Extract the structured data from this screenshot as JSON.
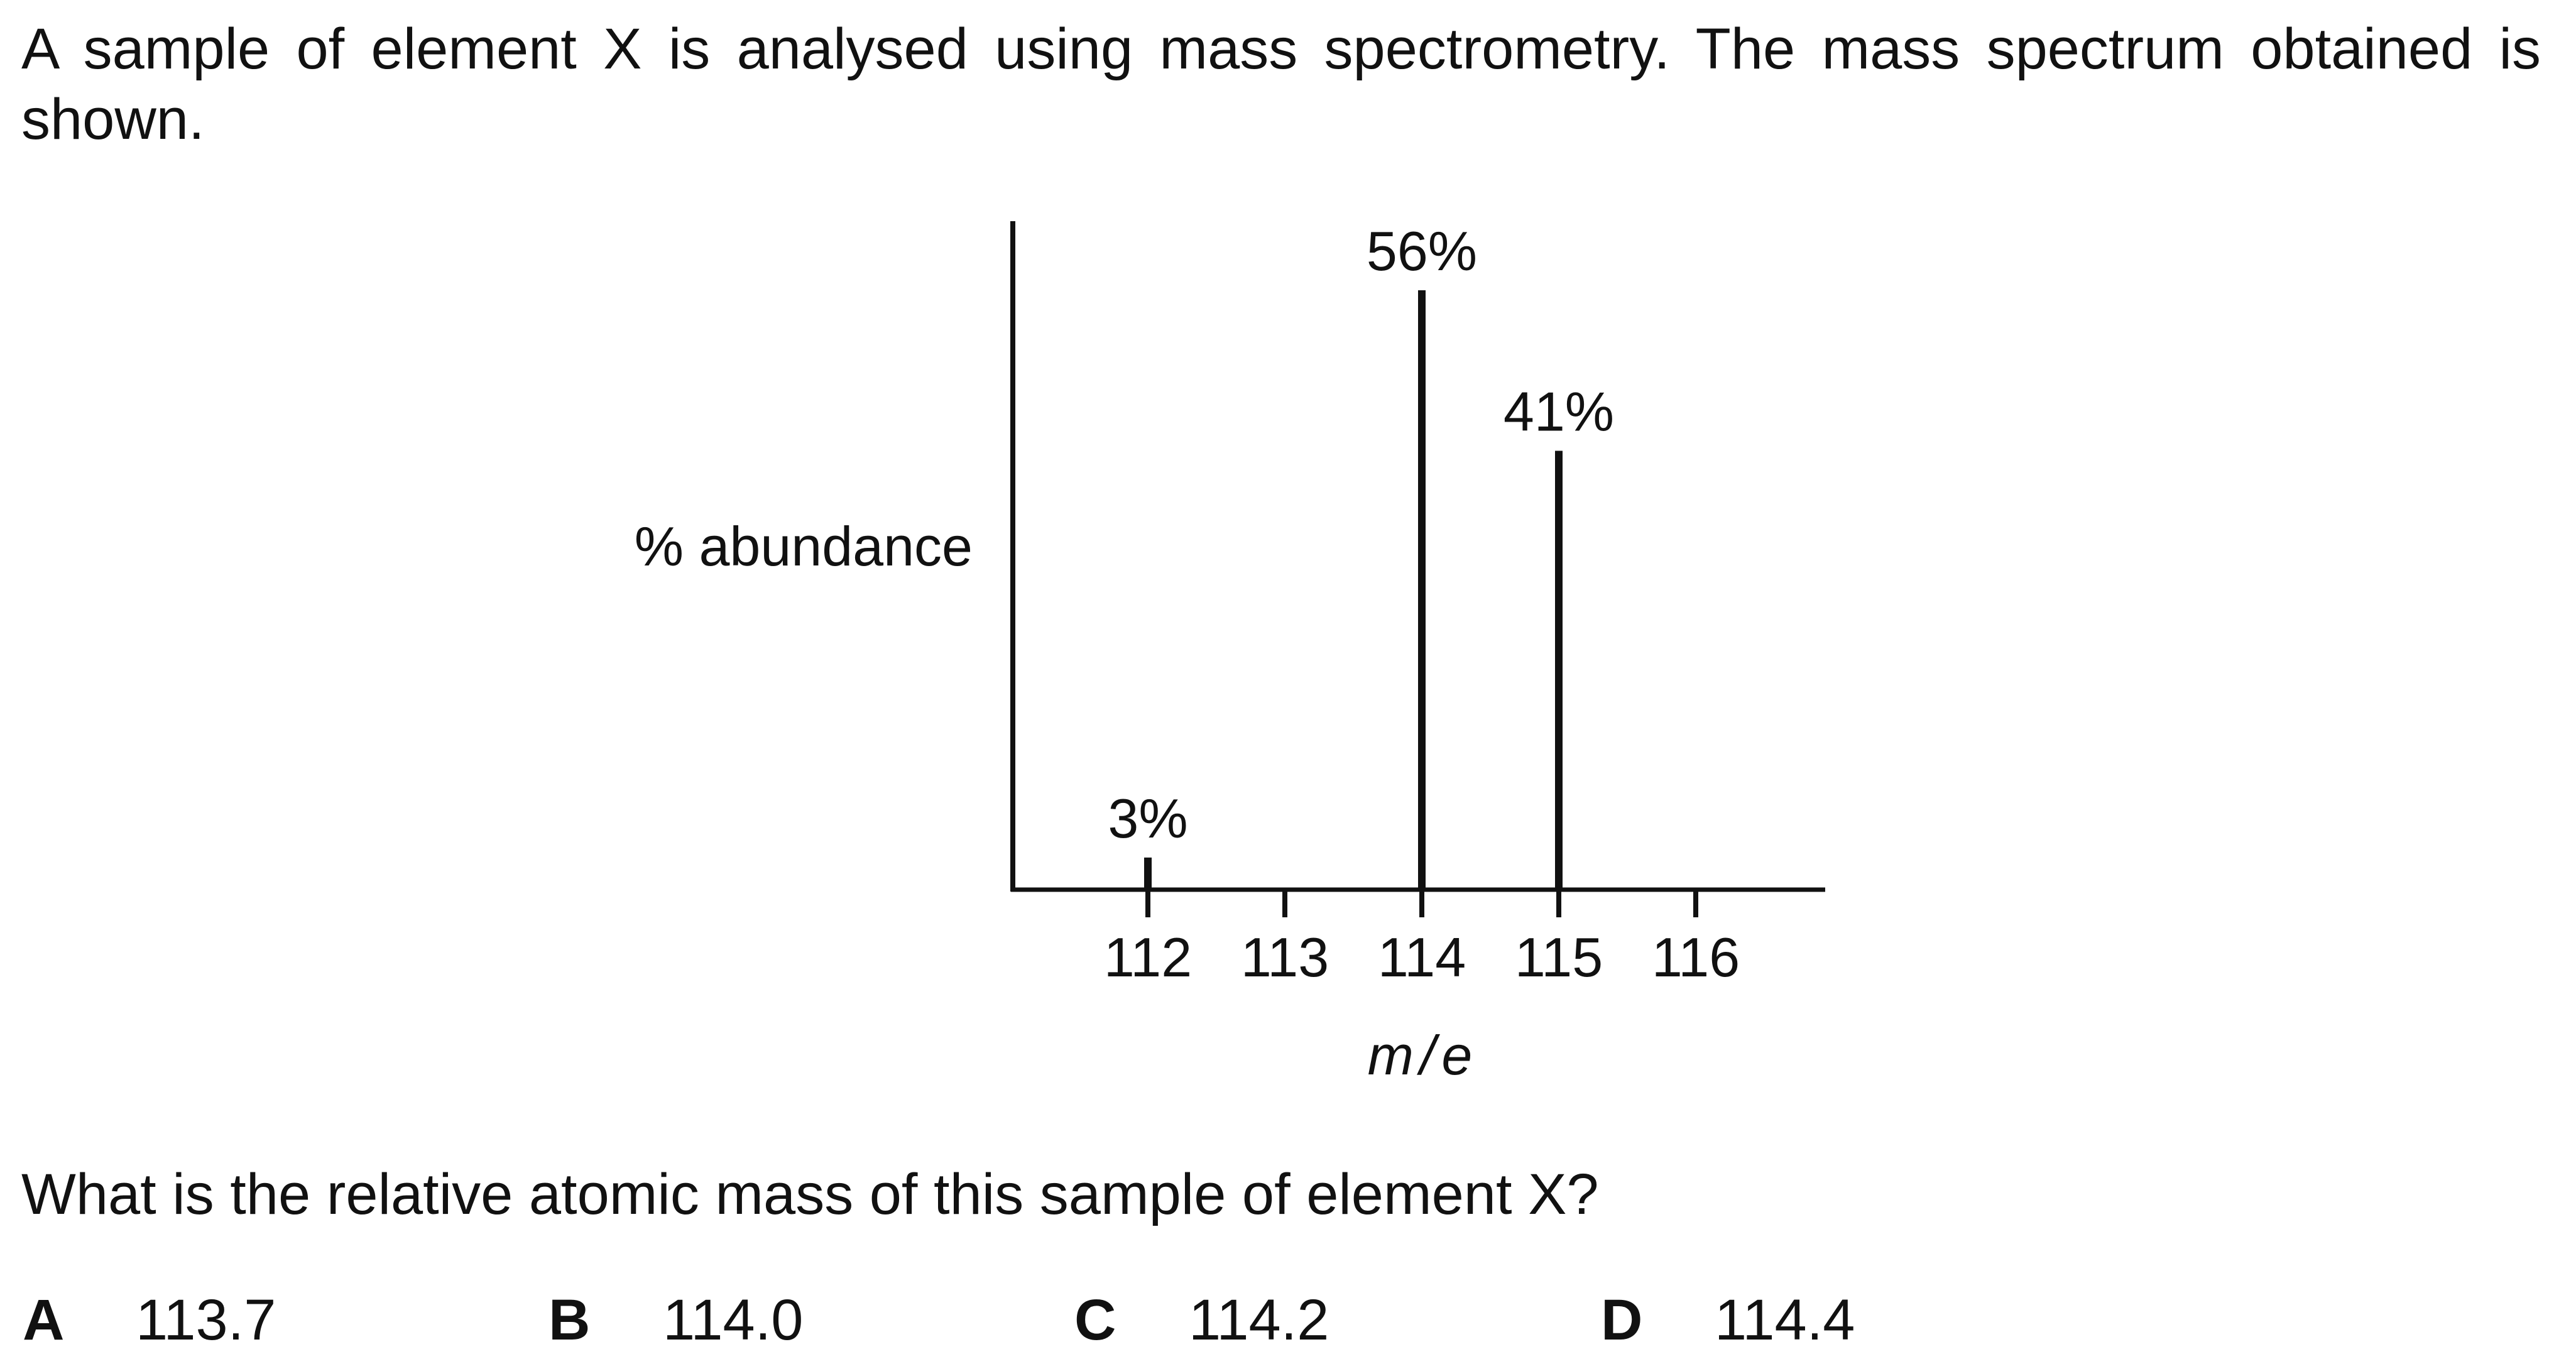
{
  "question": {
    "intro": "A sample of element X is analysed using mass spectrometry. The mass spectrum obtained is shown.",
    "prompt": "What is the relative atomic mass of this sample of element X?"
  },
  "options": [
    {
      "letter": "A",
      "value": "113.7"
    },
    {
      "letter": "B",
      "value": "114.0"
    },
    {
      "letter": "C",
      "value": "114.2"
    },
    {
      "letter": "D",
      "value": "114.4"
    }
  ],
  "chart_data": {
    "type": "bar",
    "ylabel": "% abundance",
    "xlabel": "m / e",
    "x_ticks": [
      112,
      113,
      114,
      115,
      116
    ],
    "x_tick_labels": [
      "112",
      "113",
      "114",
      "115",
      "116"
    ],
    "x": [
      112,
      114,
      115
    ],
    "values": [
      3,
      56,
      41
    ],
    "data_labels": [
      "3%",
      "56%",
      "41%"
    ],
    "xlim": [
      111,
      117
    ],
    "ylim": [
      0,
      56
    ],
    "grid": false,
    "legend": "none"
  }
}
